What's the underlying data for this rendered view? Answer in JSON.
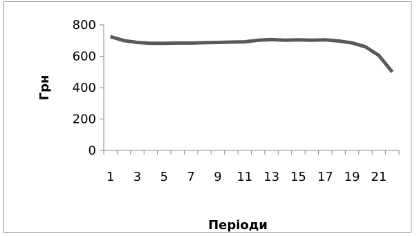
{
  "chart_data": {
    "type": "line",
    "title": "",
    "xlabel": "Періоди",
    "ylabel": "Грн",
    "x": [
      1,
      2,
      3,
      4,
      5,
      6,
      7,
      8,
      9,
      10,
      11,
      12,
      13,
      14,
      15,
      16,
      17,
      18,
      19,
      20,
      21,
      22
    ],
    "x_tick_labels": [
      "1",
      "3",
      "5",
      "7",
      "9",
      "11",
      "13",
      "15",
      "17",
      "19",
      "21"
    ],
    "y_tick_labels": [
      "0",
      "200",
      "400",
      "600",
      "800"
    ],
    "ylim": [
      0,
      800
    ],
    "grid": false,
    "legend": "none",
    "series": [
      {
        "values": [
          725,
          700,
          688,
          682,
          682,
          684,
          684,
          686,
          688,
          690,
          692,
          702,
          706,
          702,
          704,
          702,
          704,
          697,
          685,
          660,
          605,
          500
        ],
        "color": "#595959"
      }
    ]
  }
}
